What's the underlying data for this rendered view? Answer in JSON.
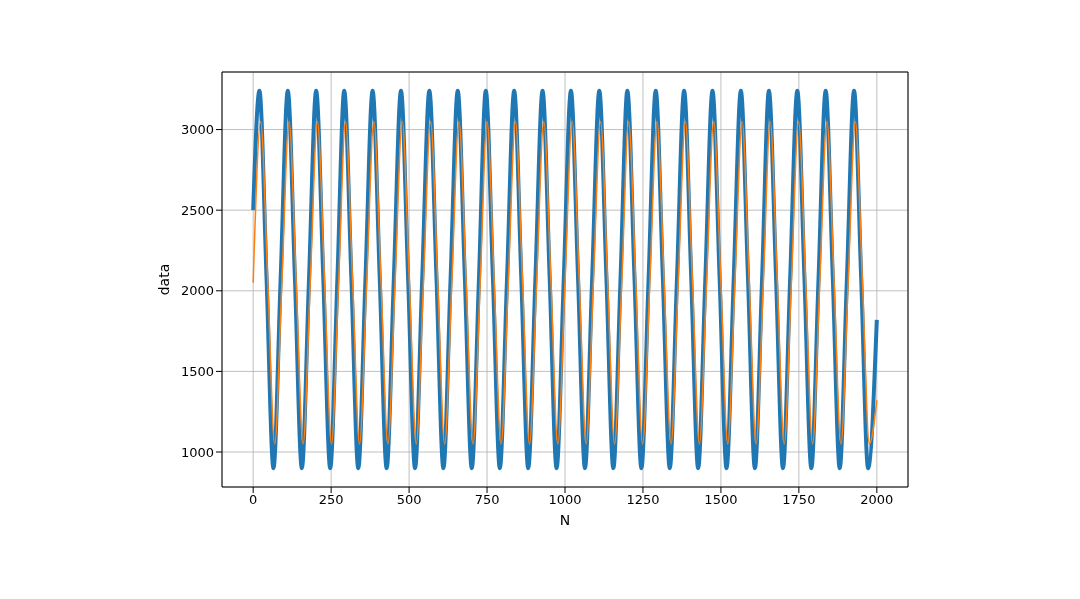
{
  "chart_data": {
    "type": "line",
    "xlabel": "N",
    "ylabel": "data",
    "xlim": [
      -100,
      2100
    ],
    "ylim": [
      783,
      3357
    ],
    "xticks": [
      0,
      250,
      500,
      750,
      1000,
      1250,
      1500,
      1750,
      2000
    ],
    "yticks": [
      1000,
      1500,
      2000,
      2500,
      3000
    ],
    "grid": true,
    "series": [
      {
        "color": "#1f77b4",
        "x": [
          0,
          20,
          43,
          65,
          88,
          111,
          134,
          156,
          179,
          202,
          225,
          247,
          270,
          292,
          315,
          337,
          360,
          383,
          406,
          428,
          451,
          474,
          497,
          519,
          542,
          565,
          588,
          610,
          633,
          656,
          679,
          701,
          724,
          746,
          769,
          791,
          814,
          837,
          860,
          882,
          905,
          928,
          951,
          973,
          996,
          1019,
          1042,
          1064,
          1087,
          1110,
          1133,
          1155,
          1178,
          1200,
          1223,
          1245,
          1268,
          1291,
          1314,
          1336,
          1359,
          1382,
          1405,
          1427,
          1450,
          1473,
          1496,
          1518,
          1541,
          1564,
          1587,
          1609,
          1632,
          1654,
          1677,
          1699,
          1722,
          1745,
          1768,
          1790,
          1813,
          1836,
          1859,
          1881,
          1904,
          1927,
          1950,
          1972,
          2000
        ],
        "values": [
          2500,
          3240,
          2070,
          900,
          2070,
          3240,
          2070,
          900,
          2070,
          3240,
          2070,
          900,
          2070,
          3240,
          2070,
          900,
          2070,
          3240,
          2070,
          900,
          2070,
          3240,
          2070,
          900,
          2070,
          3240,
          2070,
          900,
          2070,
          3240,
          2070,
          900,
          2070,
          3240,
          2070,
          900,
          2070,
          3240,
          2070,
          900,
          2070,
          3240,
          2070,
          900,
          2070,
          3240,
          2070,
          900,
          2070,
          3240,
          2070,
          900,
          2070,
          3240,
          2070,
          900,
          2070,
          3240,
          2070,
          900,
          2070,
          3240,
          2070,
          900,
          2070,
          3240,
          2070,
          900,
          2070,
          3240,
          2070,
          900,
          2070,
          3240,
          2070,
          900,
          2070,
          3240,
          2070,
          900,
          2070,
          3240,
          2070,
          900,
          2070,
          3240,
          2070,
          900,
          1820
        ]
      },
      {
        "color": "#ff7f0e",
        "x": [
          0,
          24,
          47,
          69,
          92,
          115,
          138,
          160,
          183,
          206,
          229,
          251,
          274,
          296,
          319,
          341,
          364,
          387,
          410,
          432,
          455,
          478,
          501,
          523,
          546,
          569,
          592,
          614,
          637,
          660,
          683,
          705,
          728,
          750,
          773,
          795,
          818,
          841,
          864,
          886,
          909,
          932,
          955,
          977,
          1000,
          1023,
          1046,
          1068,
          1091,
          1114,
          1137,
          1159,
          1182,
          1204,
          1227,
          1249,
          1272,
          1295,
          1318,
          1340,
          1363,
          1386,
          1409,
          1431,
          1454,
          1477,
          1500,
          1522,
          1545,
          1568,
          1591,
          1613,
          1636,
          1658,
          1681,
          1703,
          1726,
          1749,
          1772,
          1794,
          1817,
          1840,
          1863,
          1885,
          1908,
          1931,
          1954,
          1976,
          2000
        ],
        "values": [
          2050,
          3050,
          2050,
          1050,
          2050,
          3050,
          2050,
          1050,
          2050,
          3050,
          2050,
          1050,
          2050,
          3050,
          2050,
          1050,
          2050,
          3050,
          2050,
          1050,
          2050,
          3050,
          2050,
          1050,
          2050,
          3050,
          2050,
          1050,
          2050,
          3050,
          2050,
          1050,
          2050,
          3050,
          2050,
          1050,
          2050,
          3050,
          2050,
          1050,
          2050,
          3050,
          2050,
          1050,
          2050,
          3050,
          2050,
          1050,
          2050,
          3050,
          2050,
          1050,
          2050,
          3050,
          2050,
          1050,
          2050,
          3050,
          2050,
          1050,
          2050,
          3050,
          2050,
          1050,
          2050,
          3050,
          2050,
          1050,
          2050,
          3050,
          2050,
          1050,
          2050,
          3050,
          2050,
          1050,
          2050,
          3050,
          2050,
          1050,
          2050,
          3050,
          2050,
          1050,
          2050,
          3050,
          2050,
          1050,
          1320
        ]
      }
    ]
  }
}
